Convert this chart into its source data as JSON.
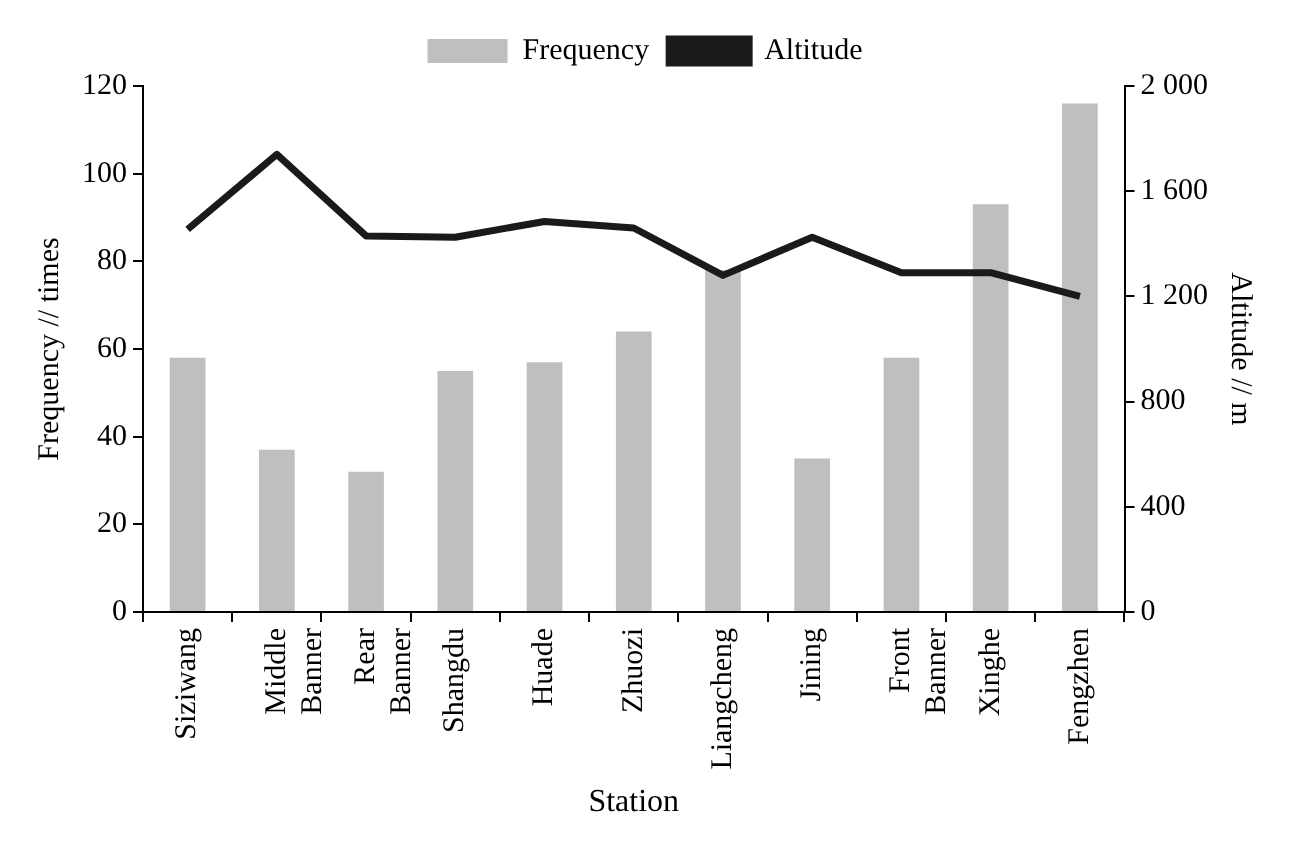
{
  "chart_data": {
    "type": "bar",
    "xlabel": "Station",
    "ylabel": "Frequency // times",
    "y2label": "Altitude // m",
    "categories": [
      "Siziwang",
      "Middle Banner",
      "Rear Banner",
      "Shangdu",
      "Huade",
      "Zhuozi",
      "Liangcheng",
      "Jining",
      "Front Banner",
      "Xinghe",
      "Fengzhen"
    ],
    "series": [
      {
        "name": "Frequency",
        "color": "#bfbfbf",
        "values": [
          58,
          37,
          32,
          55,
          57,
          64,
          78,
          35,
          58,
          93,
          116
        ]
      },
      {
        "name": "Altitude",
        "type": "line",
        "axis": "y2",
        "color": "#1a1a1a",
        "marker": "none",
        "line_style": "solid",
        "values": [
          1455,
          1740,
          1430,
          1425,
          1485,
          1460,
          1280,
          1425,
          1290,
          1290,
          1200
        ]
      }
    ],
    "ylim": [
      0,
      120
    ],
    "yticks": [
      0,
      20,
      40,
      60,
      80,
      100,
      120
    ],
    "y2lim": [
      0,
      2000
    ],
    "y2ticks": [
      0,
      400,
      800,
      {
        "value": 1200,
        "label": "1 200"
      },
      {
        "value": 1600,
        "label": "1 600"
      },
      {
        "value": 2000,
        "label": "2 000"
      }
    ],
    "grid": false,
    "legend": "top"
  }
}
